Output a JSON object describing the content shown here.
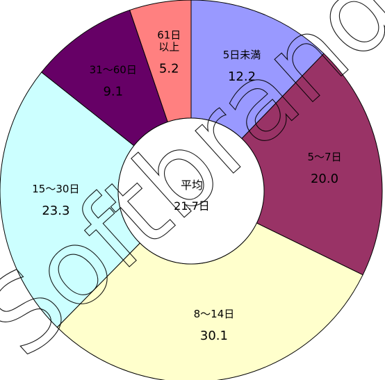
{
  "chart_data": {
    "type": "pie",
    "variant": "donut",
    "title": "",
    "unit": "%",
    "start_angle_deg": 0,
    "direction": "clockwise",
    "slices": [
      {
        "label": "5日未満",
        "value": 12.2,
        "display": "12.2",
        "color": "#9999ff",
        "text_color": "#ffffff"
      },
      {
        "label": "5〜7日",
        "value": 20.0,
        "display": "20.0",
        "color": "#993366",
        "text_color": "#ffffff"
      },
      {
        "label": "8〜14日",
        "value": 30.1,
        "display": "30.1",
        "color": "#ffffcc",
        "text_color": "#000000"
      },
      {
        "label": "15〜30日",
        "value": 23.3,
        "display": "23.3",
        "color": "#ccffff",
        "text_color": "#000000"
      },
      {
        "label": "31〜60日",
        "value": 9.1,
        "display": "9.1",
        "color": "#660066",
        "text_color": "#ffffff"
      },
      {
        "label": "61日\n以上",
        "value": 5.2,
        "display": "5.2",
        "color": "#ff8080",
        "text_color": "#ffffff"
      }
    ],
    "center": {
      "label": "平均",
      "value_text": "21.7日"
    }
  },
  "watermark": {
    "text": "Softbrand.com"
  }
}
